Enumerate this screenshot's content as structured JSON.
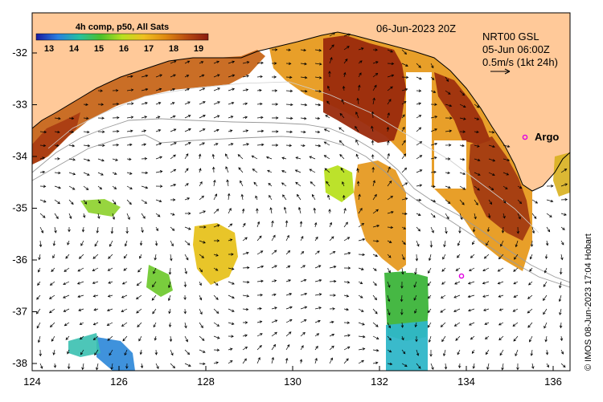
{
  "colors": {
    "land": "#ffc999",
    "ocean": "#ffffff",
    "frame": "#000000",
    "argo": "#e000e0",
    "contour": "#9a9a9a",
    "arrow": "#000000"
  },
  "colorbar": {
    "title": "4h comp, p50, All Sats",
    "ticks": [
      "13",
      "14",
      "15",
      "16",
      "17",
      "18",
      "19"
    ],
    "stops": [
      "#1a1aa0",
      "#2a7fe0",
      "#26c0a0",
      "#4cc02a",
      "#b8e020",
      "#f0c020",
      "#e08a10",
      "#b84a10",
      "#8a1a10"
    ]
  },
  "header": {
    "date_label": "06-Jun-2023 20Z"
  },
  "current_info": {
    "line1": "NRT00 GSL",
    "line2": "05-Jun 06:00Z",
    "line3": "0.5m/s (1kt 24h)"
  },
  "argo": {
    "label": "Argo",
    "icon": "circle-marker-icon"
  },
  "axes": {
    "x_ticks": [
      "124",
      "126",
      "128",
      "130",
      "132",
      "134",
      "136"
    ],
    "y_ticks": [
      "-32",
      "-33",
      "-34",
      "-35",
      "-36",
      "-37",
      "-38"
    ],
    "lon_range": [
      124,
      136.5
    ],
    "lat_range": [
      -38.2,
      -31.3
    ]
  },
  "credit": "© IMOS 08-Jun-2023 17:04 Hobart"
}
